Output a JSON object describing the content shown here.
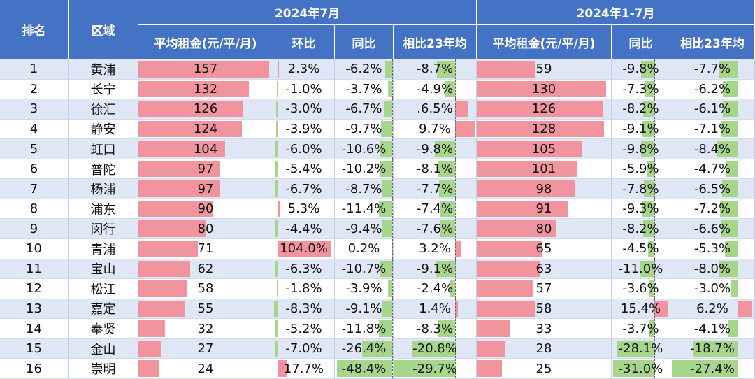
{
  "headers": {
    "rank": "排名",
    "district": "区域",
    "group_jul": "2024年7月",
    "group_ytd": "2024年1-7月",
    "jul_rent": "平均租金(元/平/月)",
    "jul_mom": "环比",
    "jul_yoy": "同比",
    "jul_vs23": "相比23年均",
    "ytd_rent": "平均租金(元/平/月)",
    "ytd_yoy": "同比",
    "ytd_vs23": "相比23年均"
  },
  "colors": {
    "header_bg": "#4472c4",
    "positive_bar": "#f1949e",
    "negative_bar": "#a6d68a",
    "row_alt": "#dfe6f5"
  },
  "rows": [
    {
      "rank": "1",
      "district": "黄浦",
      "jul_rent": 157,
      "jul_mom": 2.3,
      "jul_yoy": -6.2,
      "jul_vs23": -8.7,
      "ytd_rent": 59,
      "ytd_yoy": -9.8,
      "ytd_vs23": -7.7,
      "jul_vs23_text": "-8.7%"
    },
    {
      "rank": "2",
      "district": "长宁",
      "jul_rent": 132,
      "jul_mom": -1.0,
      "jul_yoy": -3.7,
      "jul_vs23": -4.9,
      "ytd_rent": 130,
      "ytd_yoy": -7.3,
      "ytd_vs23": -6.2,
      "jul_vs23_text": "-4.9%"
    },
    {
      "rank": "3",
      "district": "徐汇",
      "jul_rent": 126,
      "jul_mom": -3.0,
      "jul_yoy": -6.7,
      "jul_vs23": 6.5,
      "ytd_rent": 126,
      "ytd_yoy": -8.2,
      "ytd_vs23": -6.1,
      "jul_vs23_text": ".6.5%"
    },
    {
      "rank": "4",
      "district": "静安",
      "jul_rent": 124,
      "jul_mom": -3.9,
      "jul_yoy": -9.7,
      "jul_vs23": 9.7,
      "ytd_rent": 128,
      "ytd_yoy": -9.1,
      "ytd_vs23": -7.1,
      "jul_vs23_text": "9.7%"
    },
    {
      "rank": "5",
      "district": "虹口",
      "jul_rent": 104,
      "jul_mom": -6.0,
      "jul_yoy": -10.6,
      "jul_vs23": -9.8,
      "ytd_rent": 105,
      "ytd_yoy": -9.8,
      "ytd_vs23": -8.4,
      "jul_vs23_text": "-9.8%"
    },
    {
      "rank": "6",
      "district": "普陀",
      "jul_rent": 97,
      "jul_mom": -5.4,
      "jul_yoy": -10.2,
      "jul_vs23": -8.1,
      "ytd_rent": 101,
      "ytd_yoy": -5.9,
      "ytd_vs23": -4.7,
      "jul_vs23_text": "-8.1%"
    },
    {
      "rank": "7",
      "district": "杨浦",
      "jul_rent": 97,
      "jul_mom": -6.7,
      "jul_yoy": -8.7,
      "jul_vs23": -7.7,
      "ytd_rent": 98,
      "ytd_yoy": -7.8,
      "ytd_vs23": -6.5,
      "jul_vs23_text": "-7.7%"
    },
    {
      "rank": "8",
      "district": "浦东",
      "jul_rent": 90,
      "jul_mom": 5.3,
      "jul_yoy": -11.4,
      "jul_vs23": -7.4,
      "ytd_rent": 91,
      "ytd_yoy": -9.3,
      "ytd_vs23": -7.2,
      "jul_vs23_text": "-7.4%"
    },
    {
      "rank": "9",
      "district": "闵行",
      "jul_rent": 80,
      "jul_mom": -4.4,
      "jul_yoy": -9.4,
      "jul_vs23": -7.6,
      "ytd_rent": 80,
      "ytd_yoy": -8.2,
      "ytd_vs23": -6.6,
      "jul_vs23_text": "-7.6%"
    },
    {
      "rank": "10",
      "district": "青浦",
      "jul_rent": 71,
      "jul_mom": 104.0,
      "jul_yoy": 0.2,
      "jul_vs23": 3.2,
      "ytd_rent": 65,
      "ytd_yoy": -4.5,
      "ytd_vs23": -5.3,
      "jul_vs23_text": "3.2%"
    },
    {
      "rank": "11",
      "district": "宝山",
      "jul_rent": 62,
      "jul_mom": -6.3,
      "jul_yoy": -10.7,
      "jul_vs23": -9.1,
      "ytd_rent": 63,
      "ytd_yoy": -11.0,
      "ytd_vs23": -8.0,
      "jul_vs23_text": "-9.1%"
    },
    {
      "rank": "12",
      "district": "松江",
      "jul_rent": 58,
      "jul_mom": -1.8,
      "jul_yoy": -3.9,
      "jul_vs23": -2.4,
      "ytd_rent": 57,
      "ytd_yoy": -3.6,
      "ytd_vs23": -3.0,
      "jul_vs23_text": "-2.4%"
    },
    {
      "rank": "13",
      "district": "嘉定",
      "jul_rent": 55,
      "jul_mom": -8.3,
      "jul_yoy": -9.1,
      "jul_vs23": 1.4,
      "ytd_rent": 58,
      "ytd_yoy": 15.4,
      "ytd_vs23": 6.2,
      "jul_vs23_text": "1.4%"
    },
    {
      "rank": "14",
      "district": "奉贤",
      "jul_rent": 32,
      "jul_mom": -5.2,
      "jul_yoy": -11.8,
      "jul_vs23": -8.3,
      "ytd_rent": 33,
      "ytd_yoy": -3.7,
      "ytd_vs23": -4.1,
      "jul_vs23_text": "-8.3%"
    },
    {
      "rank": "15",
      "district": "金山",
      "jul_rent": 27,
      "jul_mom": -7.0,
      "jul_yoy": -26.4,
      "jul_vs23": -20.8,
      "ytd_rent": 28,
      "ytd_yoy": -28.1,
      "ytd_vs23": -18.7,
      "jul_vs23_text": "-20.8%"
    },
    {
      "rank": "16",
      "district": "崇明",
      "jul_rent": 24,
      "jul_mom": 17.7,
      "jul_yoy": -48.4,
      "jul_vs23": -29.7,
      "ytd_rent": 25,
      "ytd_yoy": -31.0,
      "ytd_vs23": -27.4,
      "jul_vs23_text": "-29.7%"
    }
  ]
}
